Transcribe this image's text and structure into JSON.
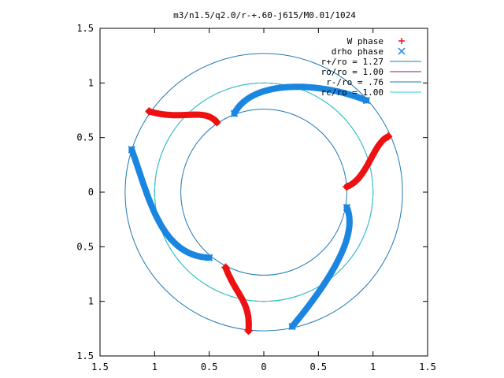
{
  "chart_data": {
    "type": "scatter",
    "title": "m3/n1.5/q2.0/r-+.60-j615/M0.01/1024",
    "xlim": [
      -1.5,
      1.5
    ],
    "ylim": [
      -1.5,
      1.5
    ],
    "x_ticks": [
      -1.5,
      -1,
      -0.5,
      0,
      0.5,
      1,
      1.5
    ],
    "x_tick_labels": [
      "1.5",
      "1",
      "0.5",
      "0",
      "0.5",
      "1",
      "1.5"
    ],
    "y_ticks": [
      1.5,
      1,
      0.5,
      0,
      -0.5,
      -1,
      -1.5
    ],
    "y_tick_labels": [
      "1.5",
      "1",
      "0.5",
      "0",
      "0.5",
      "1",
      "1.5"
    ],
    "grid": false,
    "legend_position": "top-right",
    "circles": [
      {
        "label": "r+/ro = 1.27",
        "radius": 1.27,
        "color": "#1f78b4"
      },
      {
        "label": "ro/ro = 1.00",
        "radius": 1.0,
        "color": "#8b1a6b"
      },
      {
        "label": "r-/ro = .76",
        "radius": 0.76,
        "color": "#1f78b4"
      },
      {
        "label": "rc/ro = 1.00",
        "radius": 1.0,
        "color": "#22d4d4"
      }
    ],
    "series": [
      {
        "name": "W phase",
        "marker": "+",
        "color": "#ee1111",
        "curves": [
          {
            "start": [
              -1.05,
              0.74
            ],
            "c1": [
              -0.75,
              0.65
            ],
            "c2": [
              -0.55,
              0.78
            ],
            "end": [
              -0.43,
              0.64
            ]
          },
          {
            "start": [
              0.76,
              0.05
            ],
            "c1": [
              0.95,
              0.12
            ],
            "c2": [
              1.0,
              0.45
            ],
            "end": [
              1.14,
              0.51
            ]
          },
          {
            "start": [
              -0.35,
              -0.69
            ],
            "c1": [
              -0.25,
              -0.95
            ],
            "c2": [
              -0.12,
              -1.0
            ],
            "end": [
              -0.14,
              -1.27
            ]
          }
        ]
      },
      {
        "name": "drho phase",
        "marker": "x",
        "color": "#1a86e0",
        "curves": [
          {
            "start": [
              -0.27,
              0.72
            ],
            "c1": [
              -0.1,
              1.05
            ],
            "c2": [
              0.55,
              1.0
            ],
            "end": [
              0.94,
              0.84
            ]
          },
          {
            "start": [
              -1.21,
              0.39
            ],
            "c1": [
              -1.05,
              -0.05
            ],
            "c2": [
              -0.95,
              -0.58
            ],
            "end": [
              -0.5,
              -0.6
            ]
          },
          {
            "start": [
              0.76,
              -0.14
            ],
            "c1": [
              0.85,
              -0.35
            ],
            "c2": [
              0.7,
              -0.7
            ],
            "end": [
              0.26,
              -1.23
            ]
          }
        ]
      }
    ]
  }
}
